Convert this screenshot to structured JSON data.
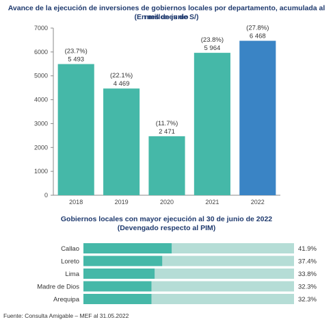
{
  "chart_data": [
    {
      "type": "bar",
      "title": "Avance de la ejecución de inversiones de gobiernos locales por departamento, acumulada al mes de junio",
      "subtitle": "(En millones de S/)",
      "categories": [
        "2018",
        "2019",
        "2020",
        "2021",
        "2022"
      ],
      "values": [
        5493,
        4469,
        2471,
        5964,
        6468
      ],
      "value_labels": [
        "5 493",
        "4 469",
        "2 471",
        "5 964",
        "6 468"
      ],
      "pct_labels": [
        "(23.7%)",
        "(22.1%)",
        "(11.7%)",
        "(23.8%)",
        "(27.8%)"
      ],
      "colors": [
        "#45b8a8",
        "#45b8a8",
        "#45b8a8",
        "#45b8a8",
        "#3a84c5"
      ],
      "ylim": [
        0,
        7000
      ],
      "yticks": [
        0,
        1000,
        2000,
        3000,
        4000,
        5000,
        6000,
        7000
      ],
      "grid": false,
      "legend": "none"
    },
    {
      "type": "bar",
      "orientation": "horizontal",
      "title": "Gobiernos locales con mayor ejecución al 30 de junio de 2022",
      "subtitle": "(Devengado respecto al PIM)",
      "categories": [
        "Callao",
        "Loreto",
        "Lima",
        "Madre de Dios",
        "Arequipa"
      ],
      "values": [
        41.9,
        37.4,
        33.8,
        32.3,
        32.3
      ],
      "value_labels": [
        "41.9%",
        "37.4%",
        "33.8%",
        "32.3%",
        "32.3%"
      ],
      "xlim": [
        0,
        100
      ],
      "colors": {
        "fill": "#45b8a8",
        "track": "#b5ddd6"
      },
      "legend": "none"
    }
  ],
  "source": "Fuente: Consulta Amigable – MEF al 31.05.2022"
}
